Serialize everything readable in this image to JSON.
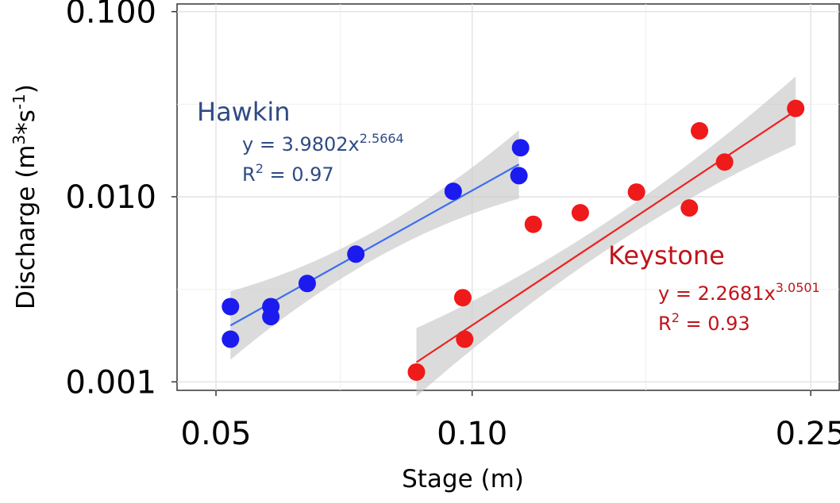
{
  "chart_data": {
    "type": "scatter",
    "xlabel": "Stage (m)",
    "ylabel": "Discharge (m3*s-1)",
    "ylabel_parts": {
      "a": "Discharge (m",
      "b": "3",
      "c": "*s",
      "d": "-1",
      "e": ")"
    },
    "x_scale": "log",
    "y_scale": "log",
    "xlim": [
      0.045,
      0.27
    ],
    "ylim": [
      0.0009,
      0.11
    ],
    "x_ticks": [
      0.05,
      0.1,
      0.25
    ],
    "x_tick_labels": [
      "0.05",
      "0.10",
      "0.25"
    ],
    "x_minor_gridlines": [
      0.07,
      0.16
    ],
    "y_ticks": [
      0.001,
      0.01,
      0.1
    ],
    "y_tick_labels": [
      "0.001",
      "0.010",
      "0.100"
    ],
    "y_minor_gridlines": [
      0.00316,
      0.0316
    ],
    "grid": true,
    "series": [
      {
        "name": "Hawkin",
        "color": "#1b1bf0",
        "line_color": "#3c6ef0",
        "label_color": "#2f4b85",
        "points": [
          {
            "x": 0.052,
            "y": 0.00255
          },
          {
            "x": 0.052,
            "y": 0.0017
          },
          {
            "x": 0.058,
            "y": 0.00255
          },
          {
            "x": 0.058,
            "y": 0.00225
          },
          {
            "x": 0.064,
            "y": 0.0034
          },
          {
            "x": 0.073,
            "y": 0.0049
          },
          {
            "x": 0.095,
            "y": 0.0107
          },
          {
            "x": 0.114,
            "y": 0.0184
          },
          {
            "x": 0.1135,
            "y": 0.013
          }
        ],
        "fit": {
          "x_start": 0.052,
          "x_end": 0.1135,
          "a": 3.9802,
          "b": 2.5664
        },
        "equation": {
          "prefix": "y = 3.9802x",
          "exp": "2.5664"
        },
        "r2": {
          "prefix": "R",
          "sup": "2",
          "suffix": " = 0.97"
        }
      },
      {
        "name": "Keystone",
        "color": "#ef1a1a",
        "line_color": "#ee2222",
        "label_color": "#c0141a",
        "points": [
          {
            "x": 0.086,
            "y": 0.00113
          },
          {
            "x": 0.0975,
            "y": 0.00285
          },
          {
            "x": 0.098,
            "y": 0.0017
          },
          {
            "x": 0.118,
            "y": 0.0071
          },
          {
            "x": 0.134,
            "y": 0.0082
          },
          {
            "x": 0.156,
            "y": 0.0106
          },
          {
            "x": 0.18,
            "y": 0.0087
          },
          {
            "x": 0.185,
            "y": 0.0227
          },
          {
            "x": 0.198,
            "y": 0.0154
          },
          {
            "x": 0.24,
            "y": 0.03
          }
        ],
        "fit": {
          "x_start": 0.086,
          "x_end": 0.24,
          "a": 2.2681,
          "b": 3.0501
        },
        "equation": {
          "prefix": "y = 2.2681x",
          "exp": "3.0501"
        },
        "r2": {
          "prefix": "R",
          "sup": "2",
          "suffix": " = 0.93"
        }
      }
    ]
  }
}
